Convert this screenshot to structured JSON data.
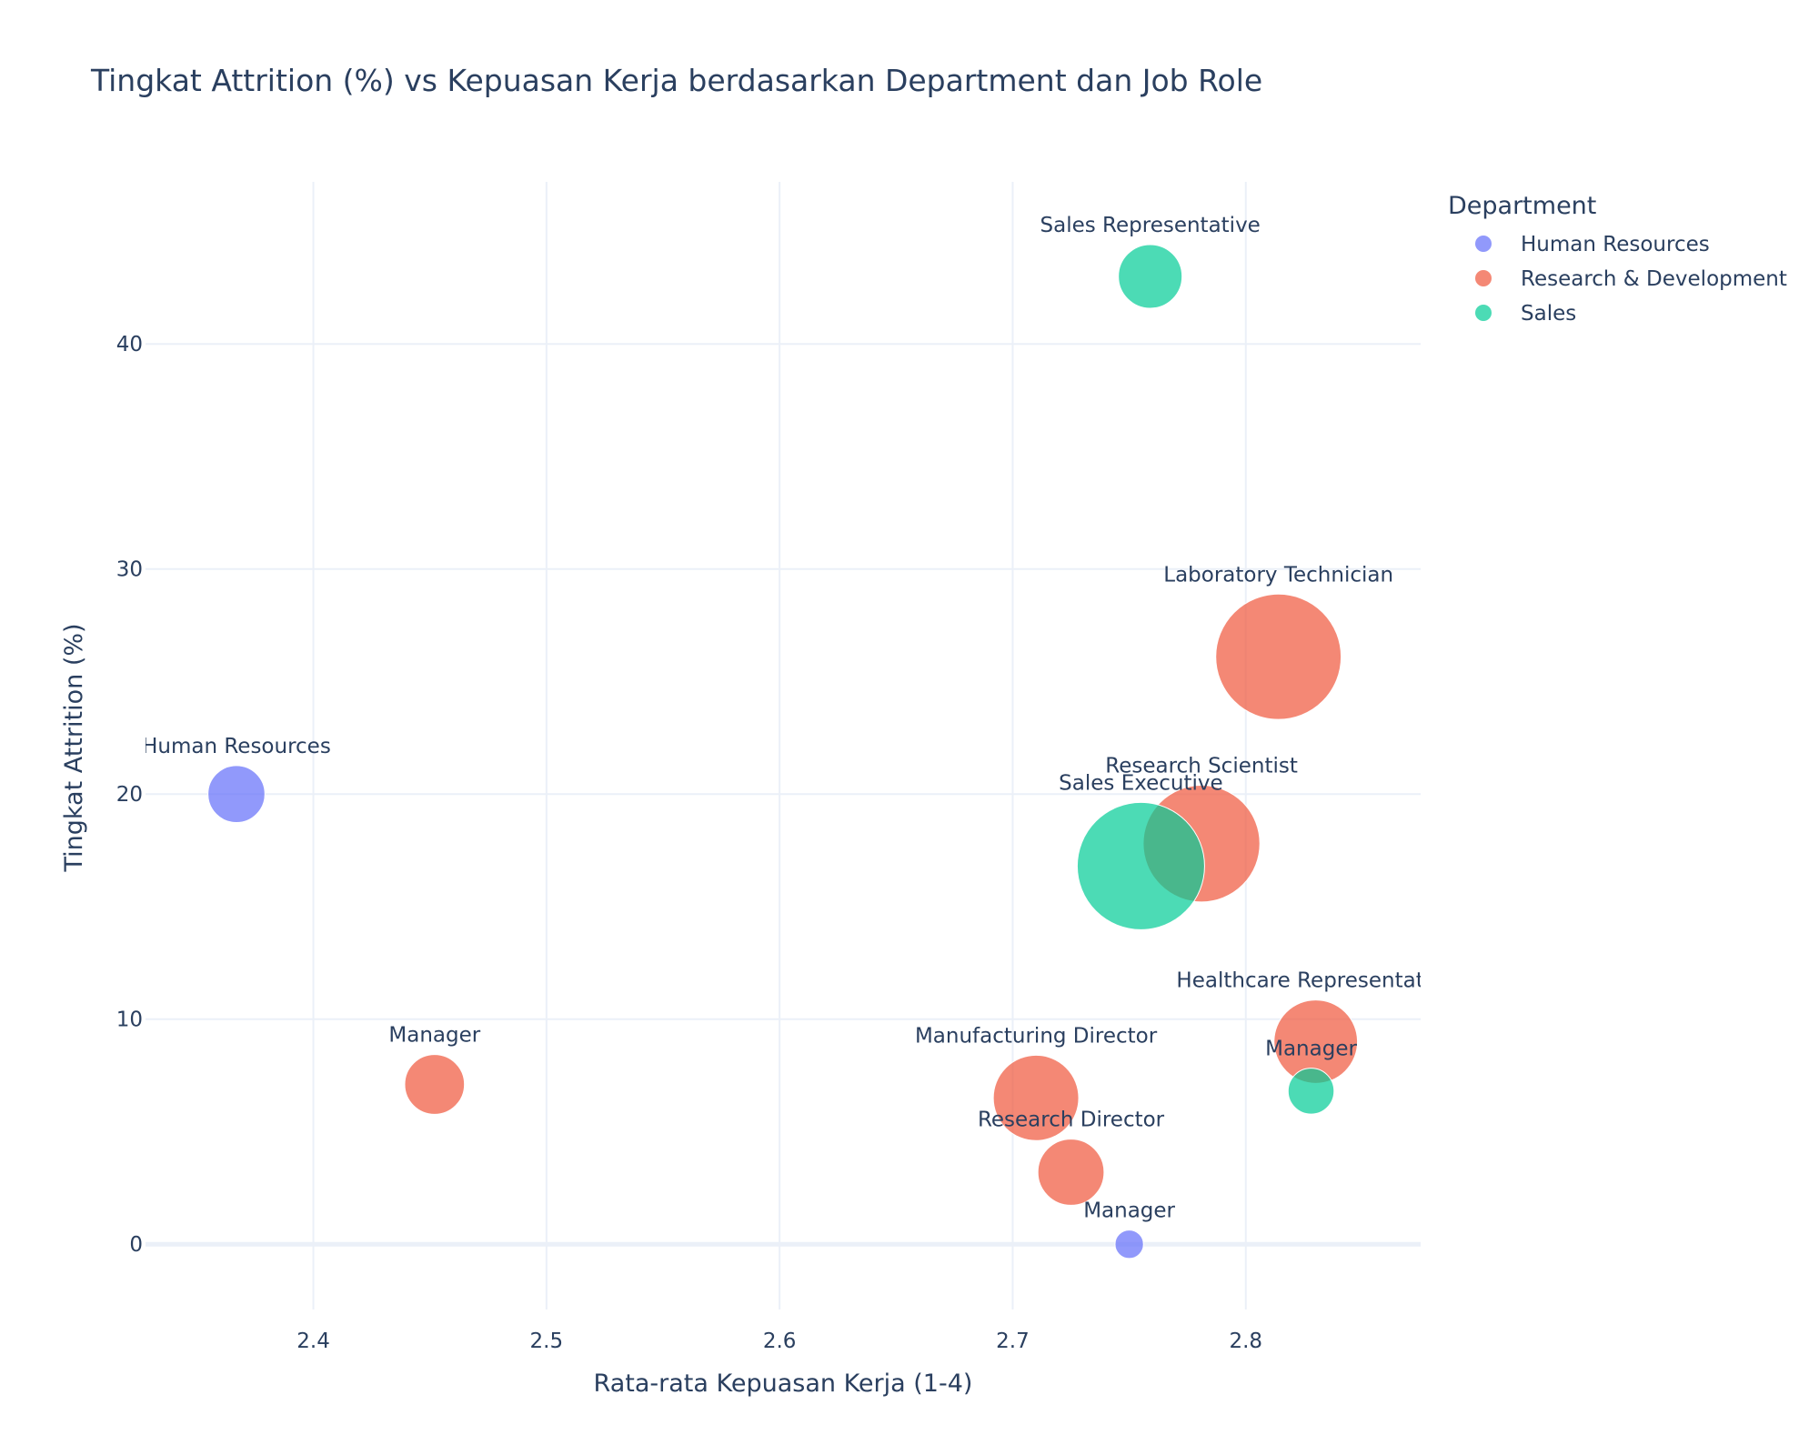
{
  "chart_data": {
    "type": "scatter",
    "title": "Tingkat Attrition (%) vs Kepuasan Kerja berdasarkan Department dan Job Role",
    "xlabel": "Rata-rata Kepuasan Kerja (1-4)",
    "ylabel": "Tingkat Attrition (%)",
    "xlim": [
      2.328,
      2.875
    ],
    "ylim": [
      -2.9,
      47.2
    ],
    "x_ticks": [
      2.4,
      2.5,
      2.6,
      2.7,
      2.8
    ],
    "x_tick_labels": [
      "2.4",
      "2.5",
      "2.6",
      "2.7",
      "2.8"
    ],
    "y_ticks": [
      0,
      10,
      20,
      30,
      40
    ],
    "y_tick_labels": [
      "0",
      "10",
      "20",
      "30",
      "40"
    ],
    "grid": true,
    "legend": {
      "title": "Department",
      "placement": "top-right"
    },
    "series": [
      {
        "name": "Human Resources",
        "color": "#636efa",
        "points": [
          {
            "label": "Human Resources",
            "x": 2.367,
            "y": 20.0,
            "size": 2
          },
          {
            "label": "Manager",
            "x": 2.75,
            "y": 0.0,
            "size": 0.5
          }
        ]
      },
      {
        "name": "Research & Development",
        "color": "#ef553b",
        "points": [
          {
            "label": "Manager",
            "x": 2.452,
            "y": 7.1,
            "size": 2.2
          },
          {
            "label": "Laboratory Technician",
            "x": 2.814,
            "y": 26.1,
            "size": 9.7
          },
          {
            "label": "Research Scientist",
            "x": 2.781,
            "y": 17.8,
            "size": 8.4
          },
          {
            "label": "Healthcare Representative",
            "x": 2.83,
            "y": 9.0,
            "size": 4.3
          },
          {
            "label": "Manufacturing Director",
            "x": 2.71,
            "y": 6.5,
            "size": 4.5
          },
          {
            "label": "Research Director",
            "x": 2.725,
            "y": 3.2,
            "size": 2.7
          }
        ]
      },
      {
        "name": "Sales",
        "color": "#00cc96",
        "points": [
          {
            "label": "Sales Representative",
            "x": 2.759,
            "y": 43.0,
            "size": 2.5
          },
          {
            "label": "Sales Executive",
            "x": 2.755,
            "y": 16.8,
            "size": 10.0
          },
          {
            "label": "Manager",
            "x": 2.828,
            "y": 6.8,
            "size": 1.3
          }
        ]
      }
    ]
  }
}
